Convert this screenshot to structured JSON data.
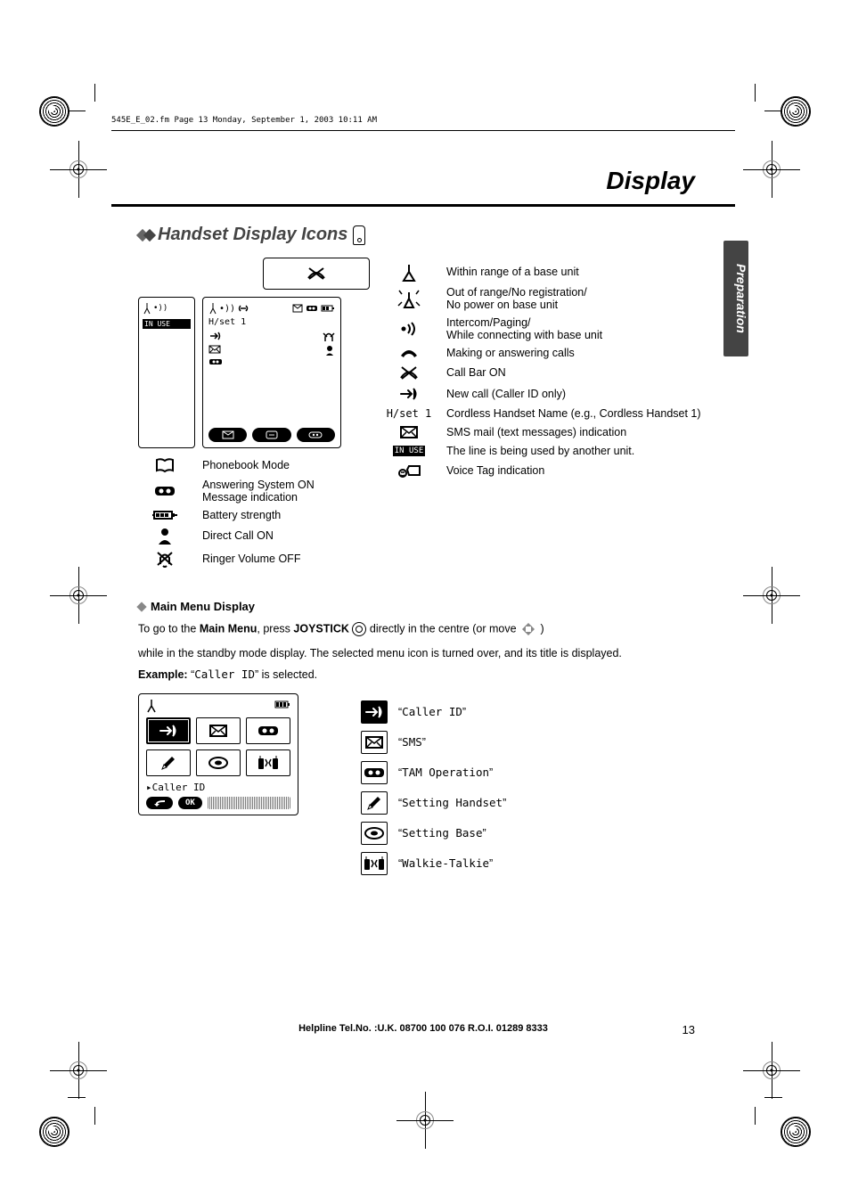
{
  "doc": {
    "header_line": "545E_E_02.fm  Page 13  Monday, September 1, 2003  10:11 AM",
    "title": "Display",
    "sidebar": "Preparation",
    "page_num": "13",
    "helpline": "Helpline Tel.No. :U.K. 08700 100 076  R.O.I. 01289 8333"
  },
  "section1": {
    "title": "Handset Display Icons",
    "phone_small": {
      "in_use": "IN USE"
    },
    "phone_large": {
      "hset": "H/set 1"
    },
    "left_rows": [
      {
        "icon": "book",
        "label": "Phonebook Mode"
      },
      {
        "icon": "tape",
        "label": "Answering System ON\nMessage indication"
      },
      {
        "icon": "battery",
        "label": "Battery strength"
      },
      {
        "icon": "person",
        "label": "Direct Call ON"
      },
      {
        "icon": "bell-off",
        "label": "Ringer Volume OFF"
      }
    ],
    "right_rows": [
      {
        "icon": "antenna",
        "label": "Within range of a base unit"
      },
      {
        "icon": "antenna-blink",
        "label": "Out of range/No registration/\nNo power on base unit"
      },
      {
        "icon": "waves",
        "label": "Intercom/Paging/\nWhile connecting with base unit"
      },
      {
        "icon": "handset",
        "label": "Making or answering calls"
      },
      {
        "icon": "callbar",
        "label": "Call Bar ON"
      },
      {
        "icon": "newcall",
        "label": "New call (Caller ID only)"
      },
      {
        "icon": "hset-text",
        "text": "H/set 1",
        "label": "Cordless Handset Name (e.g., Cordless Handset 1)"
      },
      {
        "icon": "envelope",
        "label": "SMS mail (text messages) indication"
      },
      {
        "icon": "inuse-badge",
        "text": "IN USE",
        "label": "The line is being used by another unit."
      },
      {
        "icon": "voicetag",
        "label": "Voice Tag indication"
      }
    ]
  },
  "section2": {
    "title": "Main Menu Display",
    "p1a": "To go to the ",
    "p1b": "Main Menu",
    "p1c": ", press ",
    "p1d": "JOYSTICK",
    "p1e": " directly in the centre (or move ",
    "p2": "while in the standby mode display. The selected menu icon is turned over, and its title is displayed.",
    "example_lead": "Example: ",
    "example_q1": "“",
    "example_code": "Caller ID",
    "example_q2": "” is selected.",
    "selected_label": "▸Caller ID",
    "ok": "OK",
    "menu_items": [
      {
        "icon": "newcall",
        "label": "Caller ID"
      },
      {
        "icon": "envelope",
        "label": "SMS"
      },
      {
        "icon": "tape",
        "label": "TAM Operation"
      },
      {
        "icon": "pencil",
        "label": "Setting Handset"
      },
      {
        "icon": "base",
        "label": "Setting Base"
      },
      {
        "icon": "walkie",
        "label": "Walkie-Talkie"
      }
    ]
  },
  "style": {
    "accent": "#444444",
    "text": "#000000",
    "bg": "#ffffff",
    "font_body_pt": 12.5,
    "font_title_pt": 28,
    "font_section_pt": 20
  }
}
